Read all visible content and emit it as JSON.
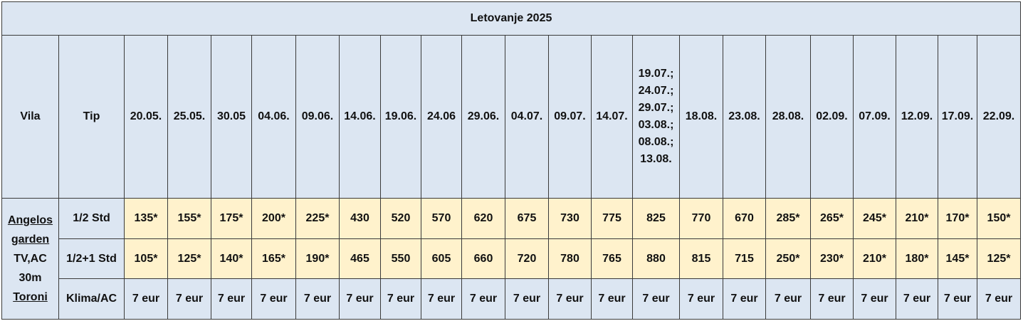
{
  "table": {
    "title": "Letovanje 2025",
    "headers": [
      "Vila",
      "Tip",
      "20.05.",
      "25.05.",
      "30.05",
      "04.06.",
      "09.06.",
      "14.06.",
      "19.06.",
      "24.06",
      "29.06.",
      "04.07.",
      "09.07.",
      "14.07.",
      "19.07.;\n24.07.;\n29.07.;\n03.08.;\n08.08.;\n13.08.",
      "18.08.",
      "23.08.",
      "28.08.",
      "02.09.",
      "07.09.",
      "12.09.",
      "17.09.",
      "22.09."
    ],
    "vila": {
      "name": "Angelos garden",
      "details": "TV,AC 30m",
      "location": "Toroni"
    },
    "rows": [
      {
        "tip": "1/2 Std",
        "prices": [
          "135*",
          "155*",
          "175*",
          "200*",
          "225*",
          "430",
          "520",
          "570",
          "620",
          "675",
          "730",
          "775",
          "825",
          "770",
          "670",
          "285*",
          "265*",
          "245*",
          "210*",
          "170*",
          "150*"
        ]
      },
      {
        "tip": "1/2+1 Std",
        "prices": [
          "105*",
          "125*",
          "140*",
          "165*",
          "190*",
          "465",
          "550",
          "605",
          "660",
          "720",
          "780",
          "765",
          "880",
          "815",
          "715",
          "250*",
          "230*",
          "210*",
          "180*",
          "145*",
          "125*"
        ]
      },
      {
        "tip": "Klima/AC",
        "prices": [
          "7 eur",
          "7 eur",
          "7 eur",
          "7 eur",
          "7 eur",
          "7 eur",
          "7 eur",
          "7 eur",
          "7 eur",
          "7 eur",
          "7 eur",
          "7 eur",
          "7 eur",
          "7 eur",
          "7 eur",
          "7 eur",
          "7 eur",
          "7 eur",
          "7 eur",
          "7 eur",
          "7 eur"
        ]
      }
    ]
  }
}
